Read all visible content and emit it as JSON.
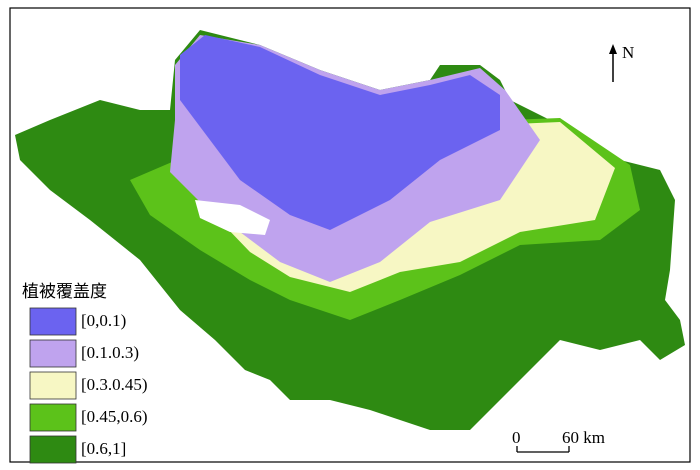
{
  "legend": {
    "title": "植被覆盖度",
    "items": [
      {
        "label": "[0,0.1)",
        "color": "#6b63f0"
      },
      {
        "label": "[0.1.0.3)",
        "color": "#bfa3ee"
      },
      {
        "label": "[0.3.0.45)",
        "color": "#f7f7c4"
      },
      {
        "label": "[0.45,0.6)",
        "color": "#5cc21a"
      },
      {
        "label": "[0.6,1]",
        "color": "#2e8a12"
      }
    ]
  },
  "north_arrow": {
    "label": "N"
  },
  "scale_bar": {
    "start": "0",
    "end": "60 km"
  }
}
